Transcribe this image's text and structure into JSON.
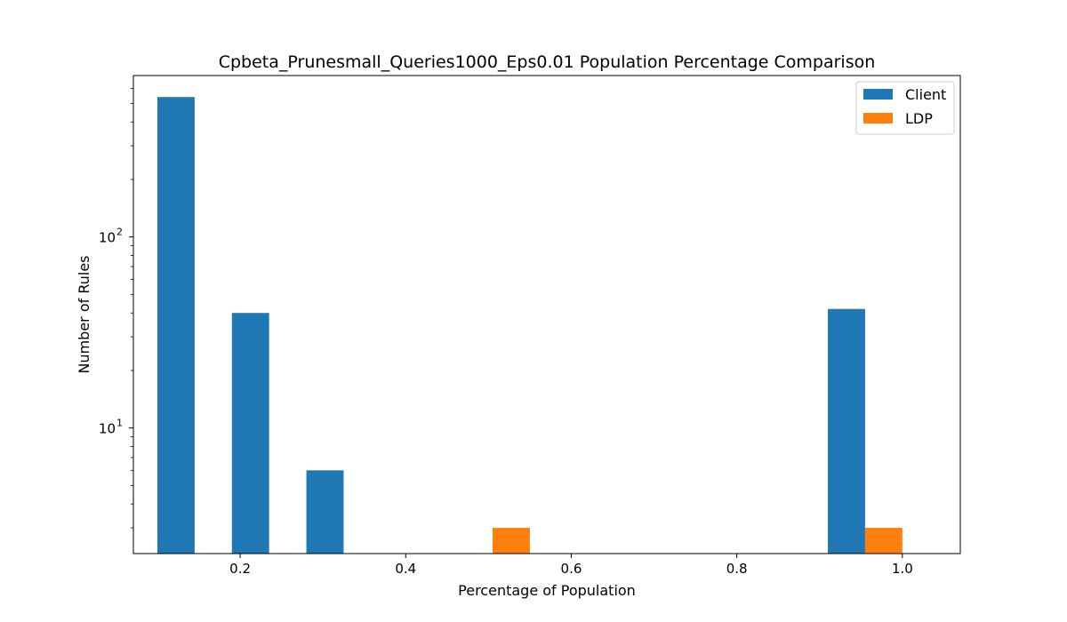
{
  "chart_data": {
    "type": "bar",
    "title": "Cpbeta_Prunesmall_Queries1000_Eps0.01 Population Percentage Comparison",
    "xlabel": "Percentage of Population",
    "ylabel": "Number of Rules",
    "yscale": "log",
    "xlim": [
      0.071,
      1.07
    ],
    "ylim": [
      2.2,
      700
    ],
    "bin_width": 0.09,
    "grid": false,
    "legend_position": "top-right",
    "x_ticks": [
      {
        "value": 0.2,
        "label": "0.2"
      },
      {
        "value": 0.4,
        "label": "0.4"
      },
      {
        "value": 0.6,
        "label": "0.6"
      },
      {
        "value": 0.8,
        "label": "0.8"
      },
      {
        "value": 1.0,
        "label": "1.0"
      }
    ],
    "y_major_ticks": [
      {
        "value": 10,
        "base": "10",
        "exp": "1"
      },
      {
        "value": 100,
        "base": "10",
        "exp": "2"
      }
    ],
    "y_minor_ticks": [
      3,
      4,
      5,
      6,
      7,
      8,
      9,
      20,
      30,
      40,
      50,
      60,
      70,
      80,
      90,
      200,
      300,
      400,
      500,
      600
    ],
    "series": [
      {
        "name": "Client",
        "color": "#1f77b4",
        "bins": [
          {
            "x": 0.1,
            "value": 540
          },
          {
            "x": 0.19,
            "value": 40
          },
          {
            "x": 0.28,
            "value": 6
          },
          {
            "x": 0.91,
            "value": 42
          }
        ]
      },
      {
        "name": "LDP",
        "color": "#ff7f0e",
        "bins": [
          {
            "x": 0.505,
            "value": 3
          },
          {
            "x": 0.955,
            "value": 3
          }
        ]
      }
    ]
  }
}
